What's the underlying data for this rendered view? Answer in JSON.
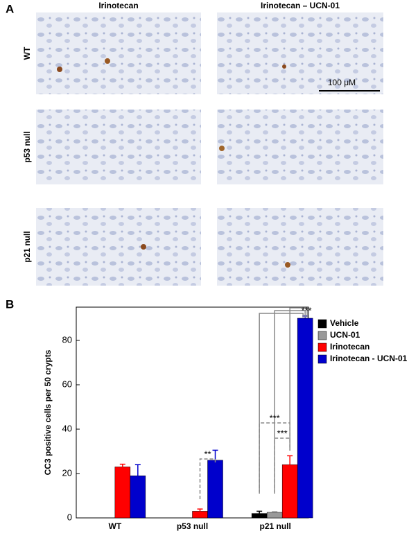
{
  "panel_a": {
    "label": "A",
    "columns": [
      "Irinotecan",
      "Irinotecan – UCN-01"
    ],
    "rows": [
      "WT",
      "p53 null",
      "p21 null"
    ],
    "scale_bar": "100 μM"
  },
  "chart_data": {
    "type": "bar",
    "panel_label": "B",
    "y_label": "CC3 positive cells per 50 crypts",
    "categories": [
      "WT",
      "p53 null",
      "p21 null"
    ],
    "series": [
      {
        "name": "Vehicle",
        "color": "#000000",
        "values": [
          null,
          null,
          2
        ],
        "errors": [
          null,
          null,
          1
        ]
      },
      {
        "name": "UCN-01",
        "color": "#999999",
        "values": [
          null,
          null,
          2.5
        ],
        "errors": [
          null,
          null,
          0.3
        ]
      },
      {
        "name": "Irinotecan",
        "color": "#ff0000",
        "values": [
          23,
          3,
          24
        ],
        "errors": [
          1.2,
          1,
          4
        ]
      },
      {
        "name": "Irinotecan - UCN-01",
        "color": "#0000cc",
        "values": [
          19,
          26,
          90
        ],
        "errors": [
          5,
          4.5,
          1
        ]
      }
    ],
    "ylim": [
      0,
      95
    ],
    "yticks": [
      0,
      20,
      40,
      60,
      80
    ],
    "annotations": [
      "**",
      "***",
      "***",
      "***"
    ]
  }
}
